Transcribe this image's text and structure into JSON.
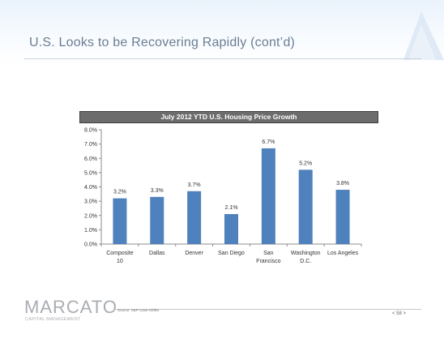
{
  "slide": {
    "title": "U.S. Looks to be Recovering Rapidly (cont’d)",
    "source": "Source: S&P Case-Shiller",
    "page_number": "< 58 >"
  },
  "logo": {
    "name": "MARCATO",
    "subtitle": "CAPITAL MANAGEMENT"
  },
  "colors": {
    "bar": "#4f81bd",
    "title_bar": "#6c6c6c",
    "slide_title": "#6b7d92"
  },
  "chart_data": {
    "type": "bar",
    "title": "July 2012 YTD U.S. Housing Price Growth",
    "categories": [
      [
        "Composite",
        "10"
      ],
      [
        "Dallas"
      ],
      [
        "Denver"
      ],
      [
        "San Diego"
      ],
      [
        "San",
        "Francisco"
      ],
      [
        "Washington",
        "D.C."
      ],
      [
        "Los Angeles"
      ]
    ],
    "values": [
      3.2,
      3.3,
      3.7,
      2.1,
      6.7,
      5.2,
      3.8
    ],
    "data_labels": [
      "3.2%",
      "3.3%",
      "3.7%",
      "2.1%",
      "6.7%",
      "5.2%",
      "3.8%"
    ],
    "y_ticks": [
      "0.0%",
      "1.0%",
      "2.0%",
      "3.0%",
      "4.0%",
      "5.0%",
      "6.0%",
      "7.0%",
      "8.0%"
    ],
    "ylim": [
      0,
      8
    ],
    "xlabel": "",
    "ylabel": "",
    "grid": false,
    "legend": "none"
  }
}
